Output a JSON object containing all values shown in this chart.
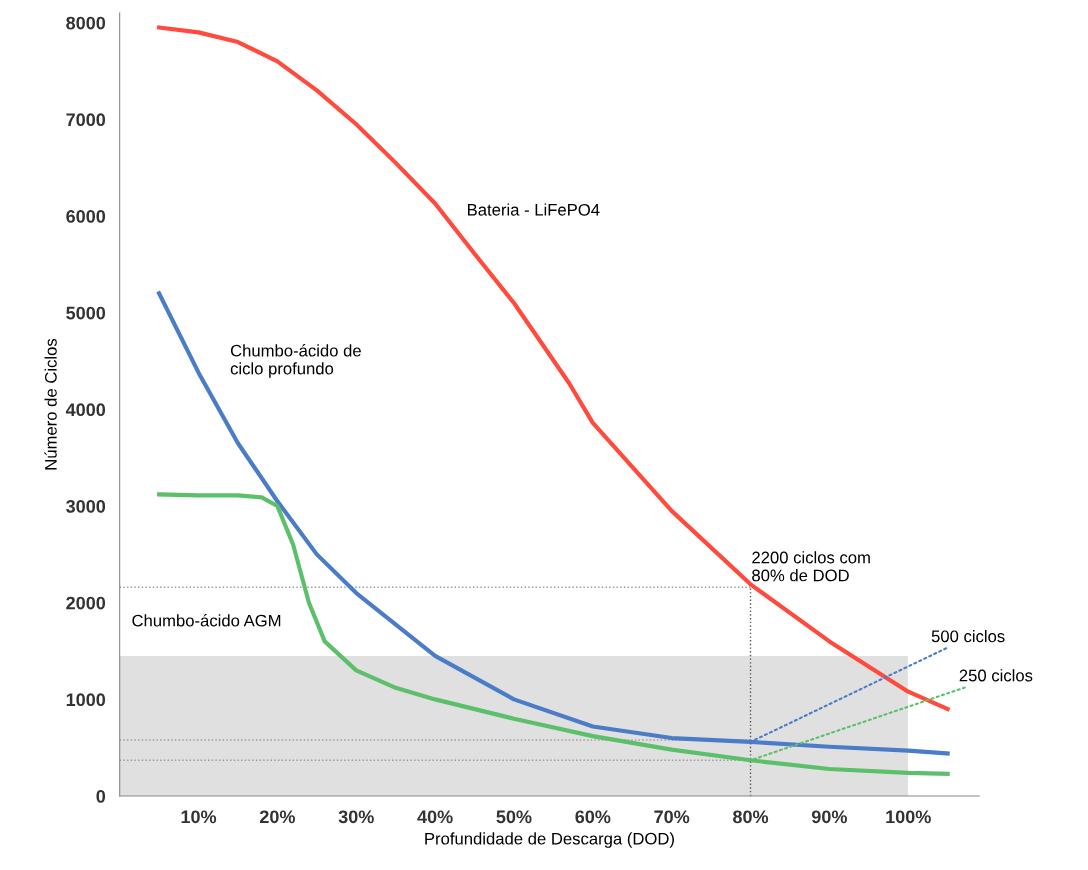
{
  "chart_data": {
    "type": "line",
    "xlabel": "Profundidade de Descarga (DOD)",
    "ylabel": "Número de Ciclos",
    "xlim": [
      0,
      109
    ],
    "ylim": [
      0,
      8100
    ],
    "xticks": [
      {
        "value": 10,
        "label": "10%"
      },
      {
        "value": 20,
        "label": "20%"
      },
      {
        "value": 30,
        "label": "30%"
      },
      {
        "value": 40,
        "label": "40%"
      },
      {
        "value": 50,
        "label": "50%"
      },
      {
        "value": 60,
        "label": "60%"
      },
      {
        "value": 70,
        "label": "70%"
      },
      {
        "value": 80,
        "label": "80%"
      },
      {
        "value": 90,
        "label": "90%"
      },
      {
        "value": 100,
        "label": "100%"
      }
    ],
    "yticks": [
      0,
      1000,
      2000,
      3000,
      4000,
      5000,
      6000,
      7000,
      8000
    ],
    "grid": false,
    "legend": false,
    "marker": "none",
    "line_style": "solid",
    "series": [
      {
        "name": "Bateria - LiFePO4",
        "color": "#ff4a3d",
        "x": [
          5,
          10,
          15,
          20,
          25,
          30,
          35,
          40,
          45,
          50,
          57,
          60,
          70,
          80,
          90,
          100,
          105
        ],
        "values": [
          7950,
          7900,
          7800,
          7600,
          7300,
          6950,
          6550,
          6130,
          5610,
          5100,
          4270,
          3860,
          2950,
          2190,
          1600,
          1080,
          900
        ]
      },
      {
        "name": "Chumbo-ácido de ciclo profundo",
        "color": "#4a7cc7",
        "x": [
          5,
          10,
          15,
          20,
          25,
          30,
          40,
          50,
          60,
          70,
          80,
          90,
          100,
          105
        ],
        "values": [
          5200,
          4380,
          3650,
          3050,
          2500,
          2100,
          1450,
          1000,
          720,
          600,
          560,
          510,
          470,
          440
        ]
      },
      {
        "name": "Chumbo-ácido AGM",
        "color": "#5cbf6a",
        "x": [
          5,
          10,
          15,
          18,
          20,
          22,
          24,
          26,
          30,
          35,
          40,
          50,
          60,
          70,
          80,
          90,
          100,
          105
        ],
        "values": [
          3120,
          3110,
          3110,
          3090,
          3000,
          2600,
          2000,
          1600,
          1300,
          1120,
          1000,
          800,
          620,
          480,
          370,
          280,
          240,
          230
        ]
      }
    ],
    "bands": [
      {
        "axis": "y",
        "from": 0,
        "to": 1450,
        "color": "#e0e0e0"
      }
    ],
    "ref_lines": [
      {
        "axis": "y",
        "value": 2160,
        "color": "#999999",
        "line_style": "dotted"
      },
      {
        "axis": "y",
        "value": 580,
        "color": "#999999",
        "line_style": "dotted"
      },
      {
        "axis": "y",
        "value": 370,
        "color": "#999999",
        "line_style": "dotted"
      },
      {
        "axis": "x",
        "value": 80,
        "color": "#555555",
        "line_style": "dotted"
      }
    ],
    "annotations": [
      "2200 ciclos com\n80% de DOD",
      {
        "text": "500 ciclos",
        "x": 80,
        "y": 560
      },
      {
        "text": "250 ciclos",
        "x": 80,
        "y": 370
      }
    ]
  }
}
